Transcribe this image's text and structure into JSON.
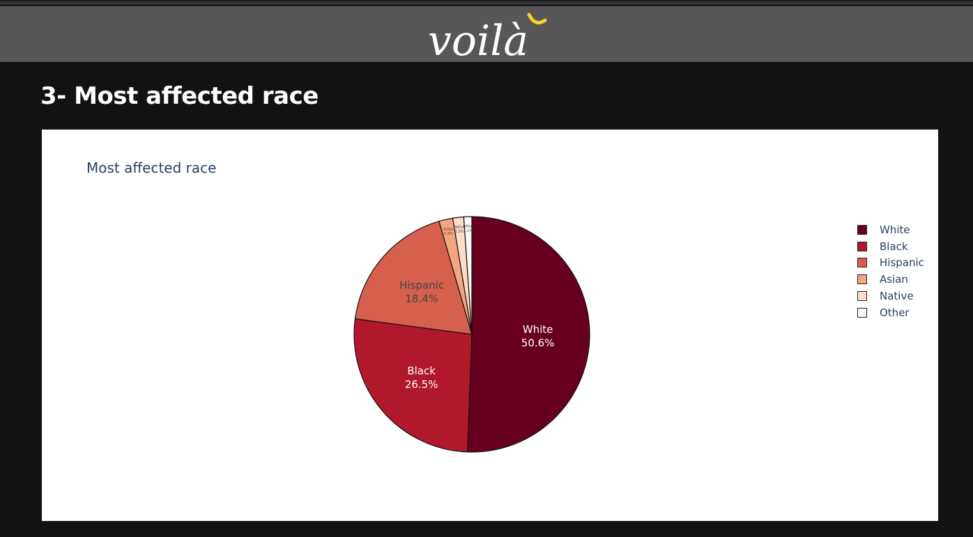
{
  "header": {
    "logo_text": "voilà"
  },
  "section": {
    "title": "3- Most affected race"
  },
  "chart_data": {
    "type": "pie",
    "title": "Most affected race",
    "labels": [
      "White",
      "Black",
      "Hispanic",
      "Asian",
      "Native",
      "Other"
    ],
    "values": [
      50.6,
      26.5,
      18.4,
      1.9,
      1.5,
      1.1
    ],
    "percent_labels": [
      "50.6%",
      "26.5%",
      "18.4%",
      "1.9%",
      "1.5%",
      "1.1%"
    ],
    "colors": [
      "#67001f",
      "#b2182b",
      "#d6604d",
      "#f4a582",
      "#fddbc7",
      "#f7f7f7"
    ],
    "text_colors": [
      "#ffffff",
      "#ffffff",
      "#444444",
      "#444444",
      "#444444",
      "#444444"
    ],
    "direction": "clockwise",
    "legend_position": "right"
  }
}
